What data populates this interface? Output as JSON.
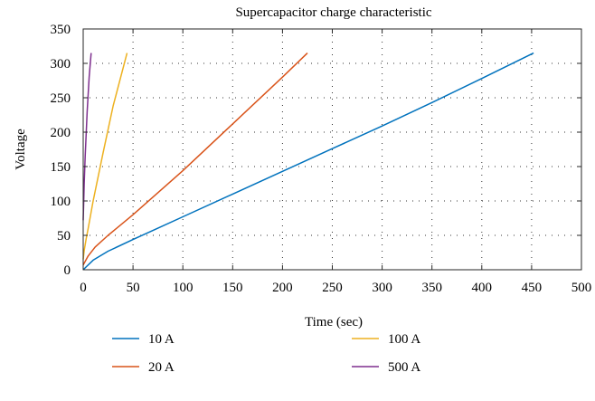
{
  "chart_data": {
    "type": "line",
    "title": "Supercapacitor charge characteristic",
    "xlabel": "Time (sec)",
    "ylabel": "Voltage",
    "xlim": [
      0,
      500
    ],
    "ylim": [
      0,
      350
    ],
    "xticks": [
      0,
      50,
      100,
      150,
      200,
      250,
      300,
      350,
      400,
      450,
      500
    ],
    "yticks": [
      0,
      50,
      100,
      150,
      200,
      250,
      300,
      350
    ],
    "grid": "dotted",
    "legend_position": "bottom",
    "series": [
      {
        "name": "10 A",
        "color": "#0072BD",
        "x": [
          0,
          10,
          25,
          50,
          100,
          150,
          200,
          250,
          300,
          350,
          400,
          452
        ],
        "y": [
          0,
          14,
          27,
          44,
          77,
          110,
          143,
          176,
          209,
          243,
          278,
          315
        ]
      },
      {
        "name": "20 A",
        "color": "#D95319",
        "x": [
          0,
          5,
          12,
          25,
          50,
          100,
          150,
          200,
          225
        ],
        "y": [
          7,
          20,
          33,
          50,
          80,
          144,
          212,
          280,
          315
        ]
      },
      {
        "name": "100 A",
        "color": "#EDB120",
        "x": [
          0,
          1,
          3,
          5,
          10,
          20,
          30,
          44
        ],
        "y": [
          15,
          28,
          45,
          60,
          100,
          170,
          238,
          315
        ]
      },
      {
        "name": "500 A",
        "color": "#7E2F8E",
        "x": [
          0,
          0.5,
          1,
          2,
          4,
          6,
          8
        ],
        "y": [
          72,
          100,
          125,
          165,
          230,
          280,
          315
        ]
      }
    ]
  }
}
